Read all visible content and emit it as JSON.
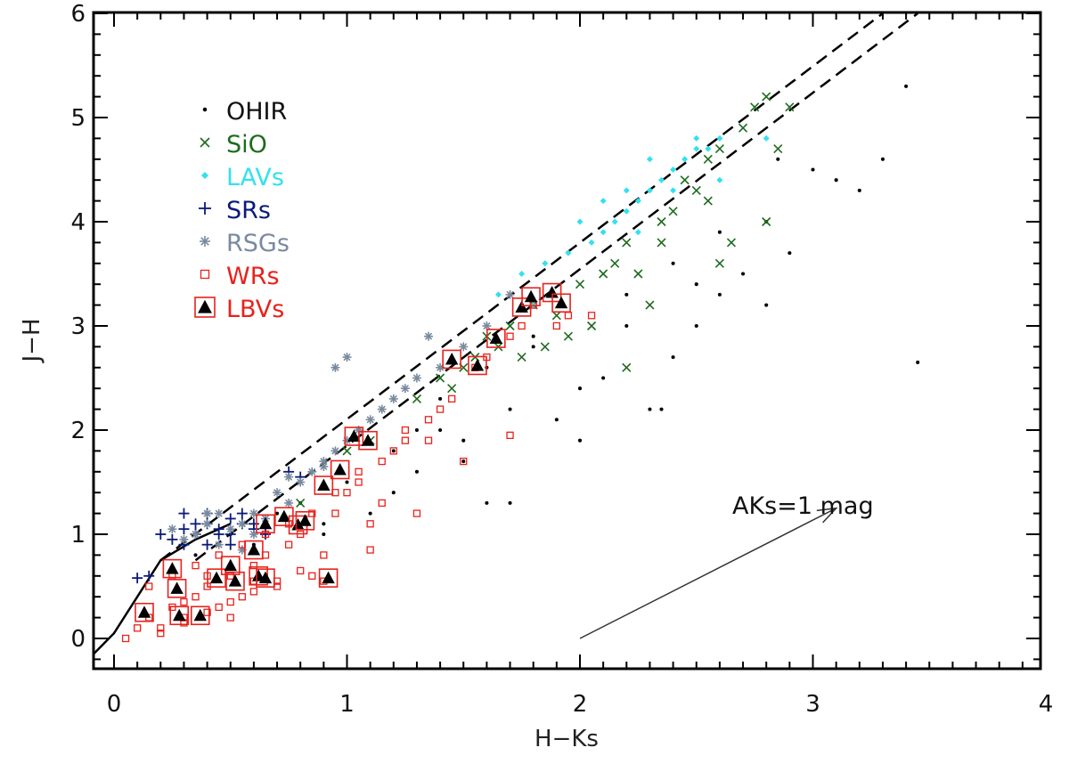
{
  "chart_data": {
    "type": "scatter",
    "title": "",
    "xlabel": "H−Ks",
    "ylabel": "J−H",
    "xlim": [
      -0.1,
      4.0
    ],
    "ylim": [
      -0.3,
      6.0
    ],
    "x_ticks": [
      "0",
      "1",
      "2",
      "3",
      "4"
    ],
    "y_ticks": [
      "0",
      "1",
      "2",
      "3",
      "4",
      "5",
      "6"
    ],
    "grid": false,
    "legend_position": "top-left",
    "annotation": {
      "text": "AKs=1  mag",
      "arrow_from": [
        2.0,
        0.0
      ],
      "arrow_to": [
        3.1,
        1.25
      ]
    },
    "reference_lines": {
      "solid": {
        "x": [
          -0.1,
          0.0,
          0.2,
          0.35,
          0.5
        ],
        "y": [
          -0.15,
          0.05,
          0.75,
          0.95,
          1.1
        ]
      },
      "dashed_upper": {
        "x": [
          0.2,
          3.3
        ],
        "y": [
          0.75,
          6.0
        ]
      },
      "dashed_lower": {
        "x": [
          0.35,
          3.45
        ],
        "y": [
          0.75,
          6.0
        ]
      }
    },
    "series": [
      {
        "name": "OHIR",
        "marker": "dot",
        "color": "#000000",
        "x": [
          0.35,
          0.5,
          0.6,
          0.7,
          0.8,
          0.9,
          1.0,
          1.1,
          1.2,
          1.3,
          1.4,
          1.5,
          1.6,
          1.7,
          1.8,
          1.9,
          2.0,
          2.1,
          2.2,
          2.3,
          2.4,
          2.5,
          2.6,
          2.7,
          2.8,
          2.85,
          2.9,
          3.0,
          3.1,
          3.2,
          3.3,
          3.4,
          3.45,
          1.0,
          1.2,
          1.4,
          1.6,
          1.8,
          2.0,
          2.2,
          2.4,
          2.6,
          2.8,
          1.7,
          2.35,
          0.9,
          1.3,
          1.5,
          2.5
        ],
        "y": [
          0.8,
          1.0,
          0.9,
          1.2,
          1.3,
          1.0,
          1.5,
          1.2,
          1.8,
          1.6,
          2.0,
          1.7,
          2.6,
          2.2,
          2.9,
          2.1,
          1.9,
          2.5,
          3.0,
          2.2,
          3.6,
          3.0,
          3.3,
          3.5,
          4.0,
          4.6,
          3.7,
          4.5,
          4.4,
          4.3,
          4.6,
          5.3,
          2.65,
          1.9,
          1.4,
          2.3,
          1.3,
          2.8,
          2.4,
          3.3,
          2.7,
          3.9,
          3.2,
          1.3,
          2.2,
          1.1,
          2.0,
          1.9,
          3.4
        ]
      },
      {
        "name": "SiO",
        "marker": "x",
        "color": "#1e6b1e",
        "x": [
          0.8,
          1.0,
          1.1,
          1.3,
          1.4,
          1.5,
          1.6,
          1.65,
          1.7,
          1.8,
          1.9,
          2.0,
          2.05,
          2.1,
          2.2,
          2.25,
          2.3,
          2.35,
          2.4,
          2.45,
          2.5,
          2.55,
          2.6,
          2.65,
          2.7,
          2.75,
          2.8,
          2.85,
          2.9,
          1.55,
          1.75,
          1.95,
          2.15,
          2.35,
          2.55,
          2.8,
          1.45,
          1.85,
          2.6,
          2.2
        ],
        "y": [
          1.3,
          1.8,
          1.9,
          2.3,
          2.5,
          2.6,
          2.9,
          2.8,
          3.0,
          3.2,
          3.1,
          3.4,
          3.0,
          3.5,
          3.8,
          3.5,
          3.2,
          4.0,
          4.1,
          4.4,
          4.3,
          4.6,
          4.7,
          3.8,
          4.9,
          5.1,
          5.2,
          4.7,
          5.1,
          2.7,
          2.7,
          2.9,
          3.6,
          3.8,
          4.2,
          4.0,
          2.4,
          2.8,
          3.6,
          2.6
        ]
      },
      {
        "name": "LAVs",
        "marker": "diamond",
        "color": "#33e0f0",
        "x": [
          1.65,
          1.75,
          1.85,
          1.95,
          2.05,
          2.1,
          2.15,
          2.2,
          2.25,
          2.3,
          2.35,
          2.4,
          2.45,
          2.5,
          2.55,
          2.6,
          2.3,
          2.2,
          2.1,
          2.0,
          2.4,
          2.5,
          2.6,
          2.8,
          2.25,
          1.8
        ],
        "y": [
          3.3,
          3.5,
          3.6,
          3.7,
          3.8,
          3.9,
          4.0,
          4.1,
          4.2,
          4.3,
          4.4,
          4.5,
          4.6,
          4.7,
          4.7,
          4.8,
          4.6,
          4.3,
          4.2,
          4.0,
          4.3,
          4.8,
          4.4,
          4.8,
          3.9,
          3.2
        ]
      },
      {
        "name": "SRs",
        "marker": "plus",
        "color": "#0a1a7a",
        "x": [
          0.1,
          0.15,
          0.2,
          0.25,
          0.3,
          0.3,
          0.35,
          0.4,
          0.4,
          0.45,
          0.5,
          0.5,
          0.55,
          0.6,
          0.65,
          0.3,
          0.35,
          0.45,
          0.55,
          0.75,
          0.8,
          0.5,
          0.6,
          0.4
        ],
        "y": [
          0.58,
          0.6,
          1.0,
          0.95,
          1.2,
          0.9,
          1.0,
          1.1,
          0.9,
          1.05,
          1.0,
          1.15,
          1.1,
          1.05,
          1.0,
          1.05,
          1.1,
          1.0,
          1.2,
          1.6,
          1.55,
          0.9,
          1.1,
          1.2
        ]
      },
      {
        "name": "RSGs",
        "marker": "asterisk",
        "color": "#7a8a9e",
        "x": [
          0.25,
          0.3,
          0.35,
          0.4,
          0.45,
          0.5,
          0.55,
          0.6,
          0.65,
          0.7,
          0.75,
          0.8,
          0.85,
          0.9,
          0.95,
          1.0,
          1.05,
          1.1,
          1.15,
          1.2,
          1.3,
          1.4,
          1.5,
          1.6,
          1.7,
          0.45,
          0.6,
          0.75,
          0.95,
          1.0,
          0.4,
          0.55,
          0.9,
          1.25,
          1.35
        ],
        "y": [
          1.05,
          0.95,
          1.0,
          1.1,
          1.2,
          1.05,
          1.1,
          1.2,
          1.15,
          1.4,
          1.55,
          1.5,
          1.6,
          1.7,
          1.8,
          1.9,
          2.0,
          2.1,
          2.2,
          2.3,
          2.5,
          2.6,
          2.8,
          3.0,
          3.3,
          0.9,
          1.0,
          1.3,
          2.6,
          2.7,
          1.2,
          0.85,
          1.65,
          2.4,
          2.9
        ]
      },
      {
        "name": "WRs",
        "marker": "square",
        "color": "#e8221c",
        "x": [
          0.05,
          0.1,
          0.15,
          0.2,
          0.25,
          0.3,
          0.35,
          0.4,
          0.45,
          0.5,
          0.55,
          0.6,
          0.65,
          0.7,
          0.75,
          0.8,
          0.85,
          0.9,
          0.95,
          1.0,
          1.05,
          1.1,
          1.15,
          1.2,
          1.25,
          1.3,
          1.35,
          1.4,
          1.5,
          1.55,
          1.6,
          1.7,
          1.75,
          1.8,
          1.9,
          1.95,
          2.05,
          0.2,
          0.3,
          0.4,
          0.5,
          0.6,
          0.7,
          0.8,
          0.15,
          0.25,
          0.35,
          0.45,
          0.55,
          0.65,
          0.75,
          0.85,
          0.95,
          1.05,
          1.15,
          1.25,
          1.35,
          1.45,
          0.3,
          0.4,
          0.5,
          0.6,
          1.1,
          0.9,
          1.7
        ],
        "y": [
          0.0,
          0.1,
          0.2,
          0.1,
          0.3,
          0.2,
          0.4,
          0.5,
          0.3,
          0.6,
          0.4,
          0.7,
          0.8,
          0.5,
          0.9,
          1.0,
          0.6,
          0.8,
          1.2,
          1.4,
          1.6,
          1.1,
          1.3,
          1.8,
          2.0,
          1.2,
          1.9,
          2.2,
          1.7,
          2.6,
          2.7,
          2.9,
          3.0,
          3.2,
          3.0,
          3.1,
          3.1,
          0.05,
          0.15,
          0.25,
          0.35,
          0.45,
          0.55,
          0.65,
          0.5,
          0.6,
          0.7,
          0.8,
          0.9,
          1.0,
          1.1,
          1.2,
          1.4,
          1.5,
          1.7,
          1.9,
          2.1,
          2.3,
          0.35,
          0.6,
          0.2,
          0.55,
          0.85,
          0.55,
          1.95
        ]
      },
      {
        "name": "LBVs",
        "marker": "boxed-triangle",
        "color": "#e8221c",
        "x": [
          0.13,
          0.25,
          0.27,
          0.28,
          0.37,
          0.44,
          0.5,
          0.52,
          0.6,
          0.62,
          0.65,
          0.65,
          0.73,
          0.79,
          0.82,
          0.9,
          0.92,
          0.97,
          1.03,
          1.09,
          1.45,
          1.56,
          1.64,
          1.75,
          1.79,
          1.88,
          1.92
        ],
        "y": [
          0.25,
          0.67,
          0.48,
          0.22,
          0.22,
          0.58,
          0.7,
          0.55,
          0.85,
          0.6,
          0.58,
          1.1,
          1.17,
          1.09,
          1.13,
          1.47,
          0.58,
          1.62,
          1.94,
          1.9,
          2.68,
          2.62,
          2.88,
          3.18,
          3.28,
          3.32,
          3.22
        ]
      }
    ]
  }
}
